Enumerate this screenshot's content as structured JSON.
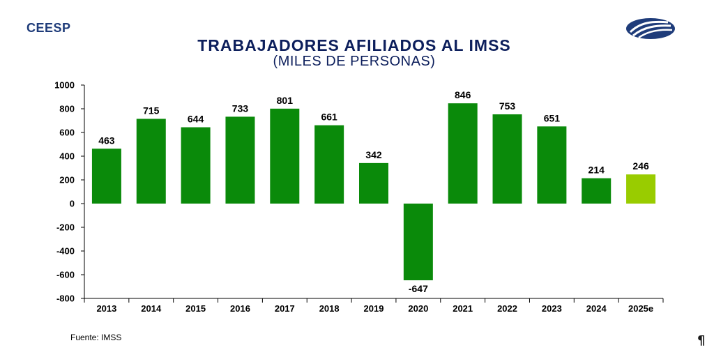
{
  "header": {
    "brand": "CEESP",
    "logo_icon": "ceesp-logo-icon"
  },
  "chart_data": {
    "type": "bar",
    "title": "TRABAJADORES AFILIADOS AL IMSS",
    "subtitle": "(MILES DE PERSONAS)",
    "xlabel": "",
    "ylabel": "",
    "ylim": [
      -800,
      1000
    ],
    "yticks": [
      1000,
      800,
      600,
      400,
      200,
      0,
      -200,
      -400,
      -600,
      -800
    ],
    "categories": [
      "2013",
      "2014",
      "2015",
      "2016",
      "2017",
      "2018",
      "2019",
      "2020",
      "2021",
      "2022",
      "2023",
      "2024",
      "2025e"
    ],
    "values": [
      463,
      715,
      644,
      733,
      801,
      661,
      342,
      -647,
      846,
      753,
      651,
      214,
      246
    ],
    "value_labels": [
      "463",
      "715",
      "644",
      "733",
      "801",
      "661",
      "342",
      "-647",
      "846",
      "753",
      "651",
      "214",
      "246"
    ],
    "colors": {
      "actual": "#0a8a0a",
      "estimate": "#99cc00"
    },
    "estimate_index": 12,
    "grid": false,
    "legend": "none"
  },
  "footer": {
    "source": "Fuente: IMSS",
    "page_mark": "¶"
  }
}
